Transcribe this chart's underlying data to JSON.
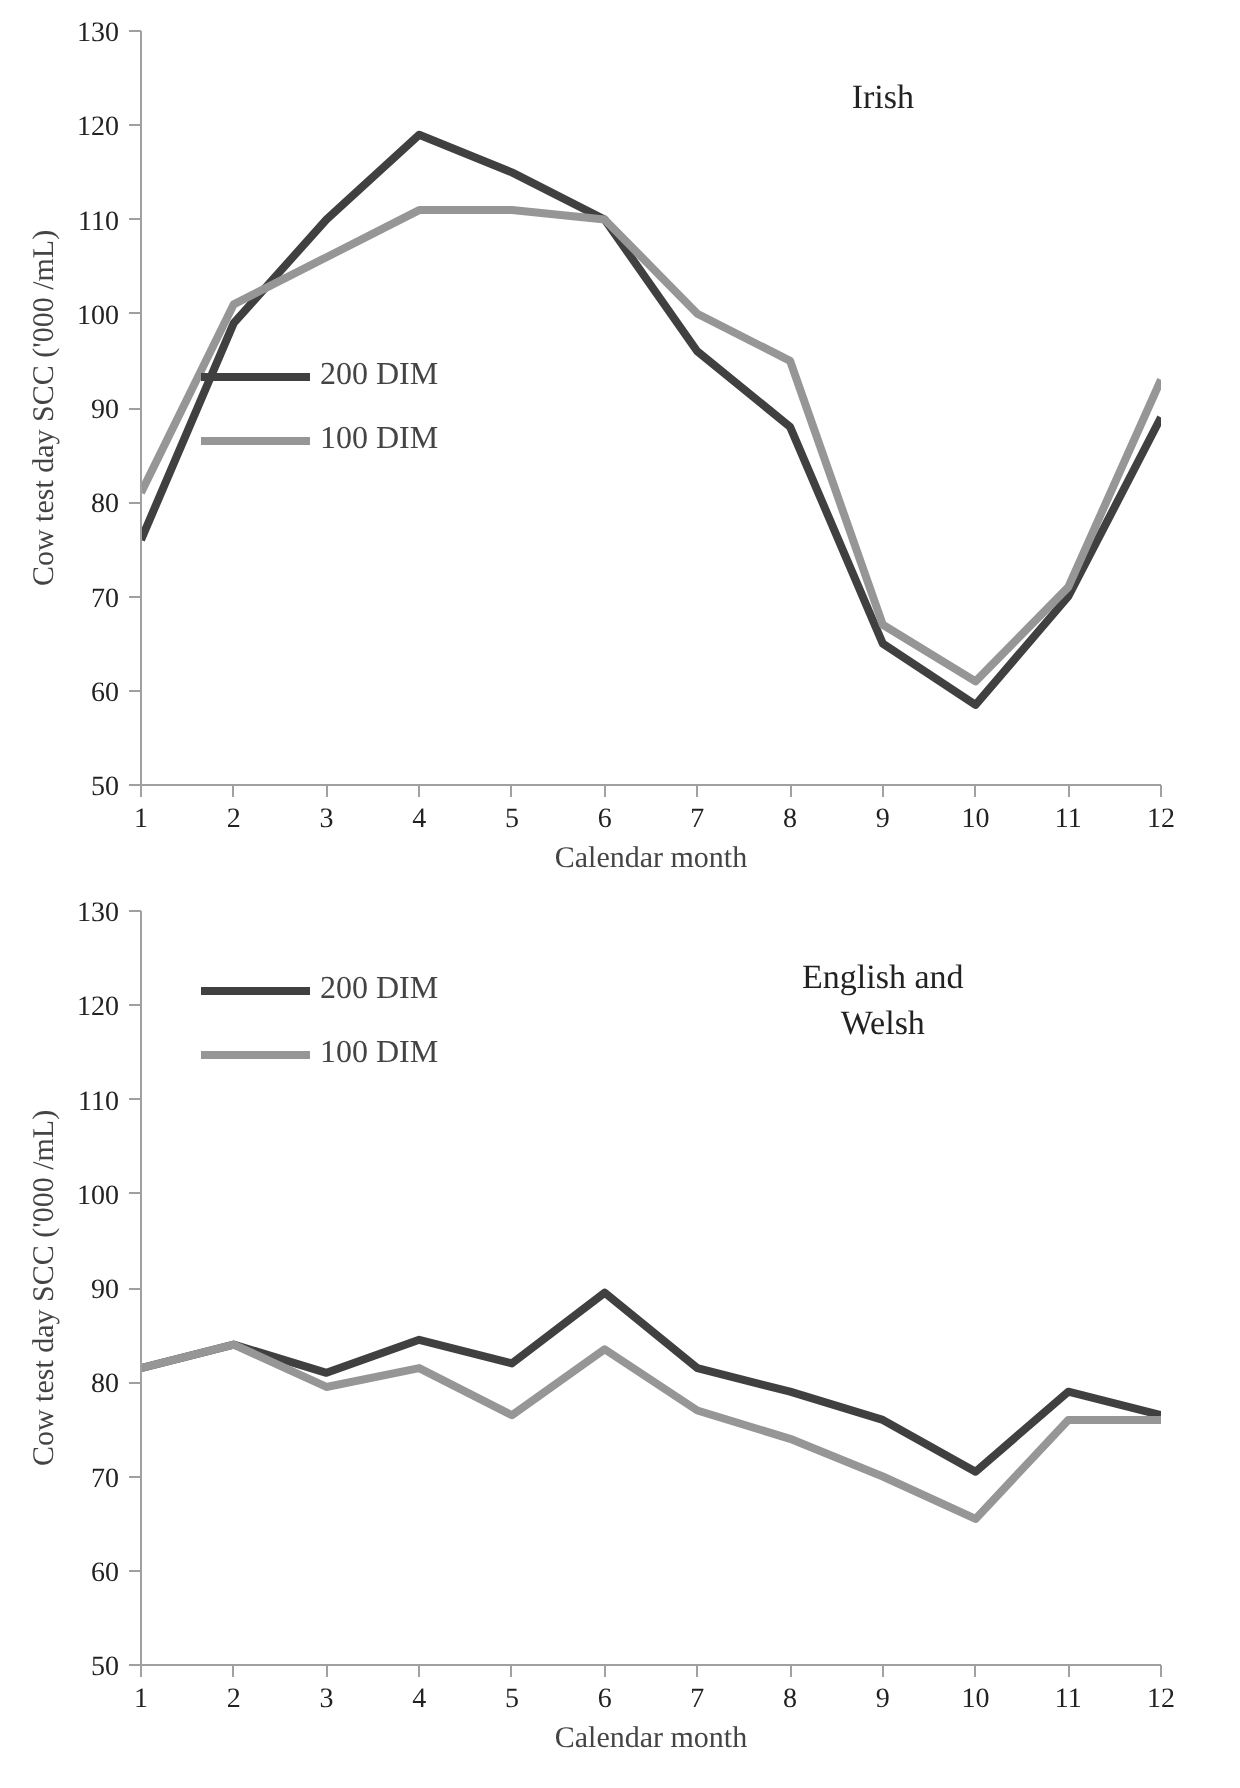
{
  "chart_data": [
    {
      "type": "line",
      "title": "Irish",
      "xlabel": "Calendar month",
      "ylabel": "Cow test day SCC ('000 /mL)",
      "x": [
        1,
        2,
        3,
        4,
        5,
        6,
        7,
        8,
        9,
        10,
        11,
        12
      ],
      "xlim": [
        1,
        12
      ],
      "xticks": [
        1,
        2,
        3,
        4,
        5,
        6,
        7,
        8,
        9,
        10,
        11,
        12
      ],
      "ylim": [
        50,
        130
      ],
      "yticks": [
        50,
        60,
        70,
        80,
        90,
        100,
        110,
        120,
        130
      ],
      "grid": false,
      "legend": "left",
      "marker": "none",
      "line_style": "solid",
      "series": [
        {
          "name": "200 DIM",
          "color": "#404040",
          "values": [
            76,
            99,
            110,
            119,
            115,
            110,
            96,
            88,
            65,
            58.5,
            70,
            89
          ]
        },
        {
          "name": "100 DIM",
          "color": "#969696",
          "values": [
            81,
            101,
            106,
            111,
            111,
            110,
            100,
            95,
            67,
            61,
            71,
            93
          ]
        }
      ]
    },
    {
      "type": "line",
      "title": "English and\nWelsh",
      "xlabel": "Calendar month",
      "ylabel": "Cow test day SCC ('000 /mL)",
      "x": [
        1,
        2,
        3,
        4,
        5,
        6,
        7,
        8,
        9,
        10,
        11,
        12
      ],
      "xlim": [
        1,
        12
      ],
      "xticks": [
        1,
        2,
        3,
        4,
        5,
        6,
        7,
        8,
        9,
        10,
        11,
        12
      ],
      "ylim": [
        50,
        130
      ],
      "yticks": [
        50,
        60,
        70,
        80,
        90,
        100,
        110,
        120,
        130
      ],
      "grid": false,
      "legend": "top left",
      "marker": "none",
      "line_style": "solid",
      "series": [
        {
          "name": "200 DIM",
          "color": "#404040",
          "values": [
            81.5,
            84,
            81,
            84.5,
            82,
            89.5,
            81.5,
            79,
            76,
            70.5,
            79,
            76.5
          ]
        },
        {
          "name": "100 DIM",
          "color": "#969696",
          "values": [
            81.5,
            84,
            79.5,
            81.5,
            76.5,
            83.5,
            77,
            74,
            70,
            65.5,
            76,
            76
          ]
        }
      ]
    }
  ]
}
